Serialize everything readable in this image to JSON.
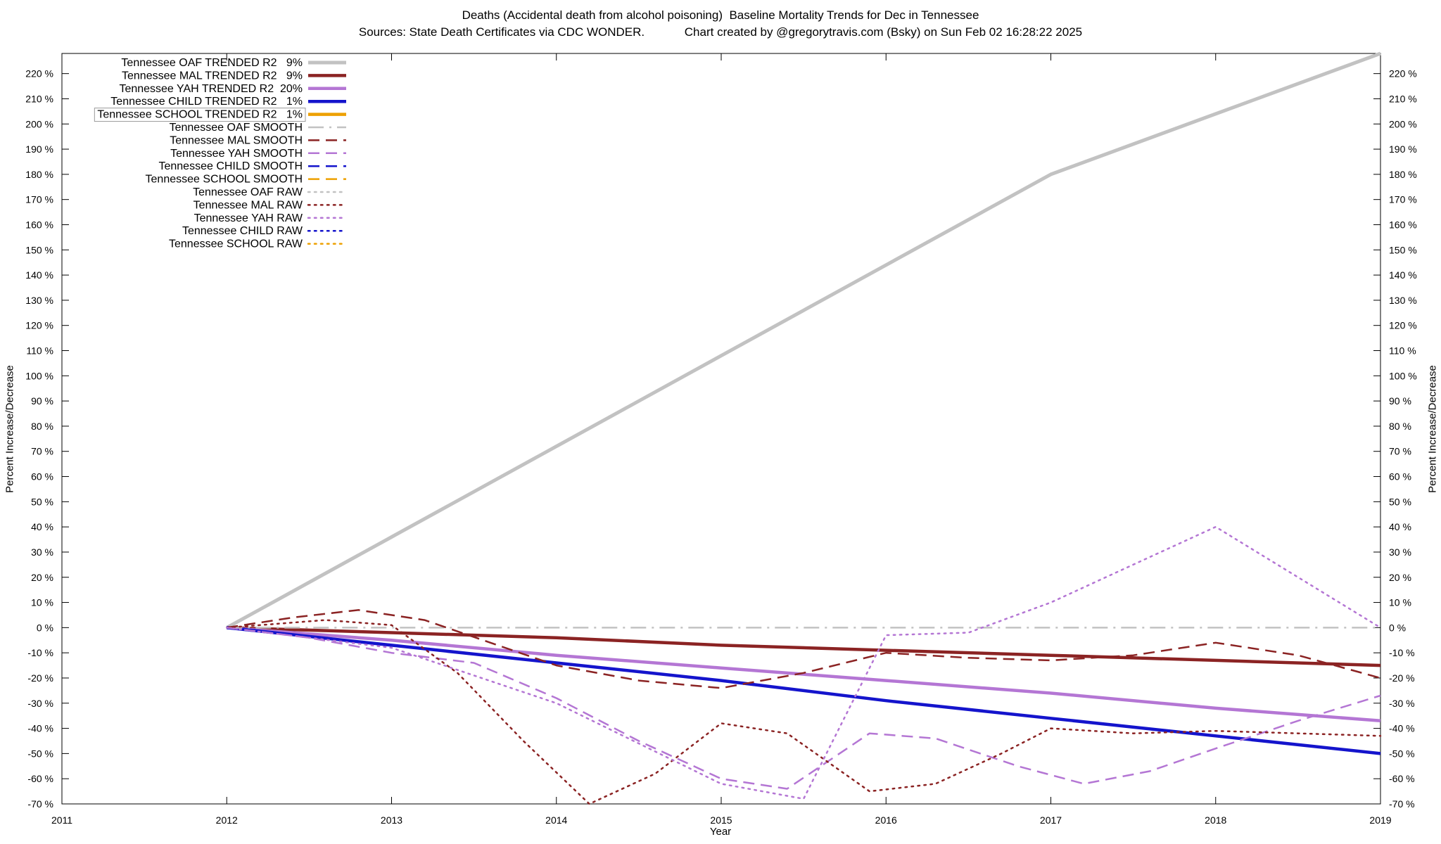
{
  "header": {
    "title_line1": "Deaths (Accidental death from alcohol poisoning)  Baseline Mortality Trends for Dec in Tennessee",
    "title_line2": "Sources: State Death Certificates via CDC WONDER.            Chart created by @gregorytravis.com (Bsky) on Sun Feb 02 16:28:22 2025"
  },
  "chart_data": {
    "type": "line",
    "title": "Deaths (Accidental death from alcohol poisoning)  Baseline Mortality Trends for Dec in Tennessee",
    "subtitle": "Sources: State Death Certificates via CDC WONDER.  Chart created by @gregorytravis.com (Bsky) on Sun Feb 02 16:28:22 2025",
    "xlabel": "Year",
    "ylabel": "Percent Increase/Decrease",
    "y2label": "Percent Increase/Decrease",
    "xlim": [
      2011,
      2019
    ],
    "ylim": [
      -70,
      228
    ],
    "grid": false,
    "legend_position": "top-left",
    "x_ticks": [
      2011,
      2012,
      2013,
      2014,
      2015,
      2016,
      2017,
      2018,
      2019
    ],
    "y_ticks": [
      -70,
      -60,
      -50,
      -40,
      -30,
      -20,
      -10,
      0,
      10,
      20,
      30,
      40,
      50,
      60,
      70,
      80,
      90,
      100,
      110,
      120,
      130,
      140,
      150,
      160,
      170,
      180,
      190,
      200,
      210,
      220
    ],
    "y_tick_suffix": " %",
    "colors": {
      "gray": "#c2c2c2",
      "dark_red": "#8b2323",
      "purple": "#b476d4",
      "blue": "#1414cc",
      "orange": "#eda000"
    },
    "series": [
      {
        "name": "Tennessee OAF TRENDED R2   9%",
        "key": "oaf-trended",
        "color": "#c2c2c2",
        "style": "solid",
        "width": 5,
        "boxed": false,
        "x": [
          2012,
          2013,
          2014,
          2015,
          2016,
          2017,
          2018,
          2019
        ],
        "y": [
          0,
          36,
          72,
          108,
          144,
          180,
          204,
          228
        ]
      },
      {
        "name": "Tennessee MAL TRENDED R2   9%",
        "key": "mal-trended",
        "color": "#8b2323",
        "style": "solid",
        "width": 4.5,
        "boxed": false,
        "x": [
          2012,
          2013,
          2014,
          2015,
          2016,
          2017,
          2018,
          2019
        ],
        "y": [
          0,
          -2,
          -4,
          -7,
          -9,
          -11,
          -13,
          -15
        ]
      },
      {
        "name": "Tennessee YAH TRENDED R2  20%",
        "key": "yah-trended",
        "color": "#b476d4",
        "style": "solid",
        "width": 4.5,
        "boxed": false,
        "x": [
          2012,
          2013,
          2014,
          2015,
          2016,
          2017,
          2018,
          2019
        ],
        "y": [
          0,
          -5,
          -11,
          -16,
          -21,
          -26,
          -32,
          -37
        ]
      },
      {
        "name": "Tennessee CHILD TRENDED R2   1%",
        "key": "child-trended",
        "color": "#1414cc",
        "style": "solid",
        "width": 4.5,
        "boxed": false,
        "x": [
          2012,
          2013,
          2014,
          2015,
          2016,
          2017,
          2018,
          2019
        ],
        "y": [
          0,
          -7,
          -14,
          -21,
          -29,
          -36,
          -43,
          -50
        ]
      },
      {
        "name": "Tennessee SCHOOL TRENDED R2   1%",
        "key": "school-trended",
        "color": "#eda000",
        "style": "solid",
        "width": 4.5,
        "boxed": true,
        "x": [],
        "y": []
      },
      {
        "name": "Tennessee OAF SMOOTH",
        "key": "oaf-smooth",
        "color": "#c2c2c2",
        "style": "dashdot",
        "width": 2.5,
        "boxed": false,
        "x": [
          2012,
          2019
        ],
        "y": [
          0,
          0
        ]
      },
      {
        "name": "Tennessee MAL SMOOTH",
        "key": "mal-smooth",
        "color": "#8b2323",
        "style": "dashed",
        "width": 2.5,
        "boxed": false,
        "x": [
          2012,
          2012.4,
          2012.8,
          2013.2,
          2013.6,
          2014,
          2014.5,
          2015,
          2015.5,
          2016,
          2016.5,
          2017,
          2017.5,
          2018,
          2018.5,
          2019
        ],
        "y": [
          0,
          4,
          7,
          3,
          -6,
          -15,
          -21,
          -24,
          -18,
          -10,
          -12,
          -13,
          -11,
          -6,
          -11,
          -20
        ]
      },
      {
        "name": "Tennessee YAH SMOOTH",
        "key": "yah-smooth",
        "color": "#b476d4",
        "style": "dashed",
        "width": 2.5,
        "boxed": false,
        "x": [
          2012,
          2012.5,
          2013,
          2013.5,
          2014,
          2014.5,
          2015,
          2015.4,
          2015.9,
          2016.3,
          2016.8,
          2017.2,
          2017.6,
          2018,
          2018.5,
          2019
        ],
        "y": [
          0,
          -4,
          -10,
          -14,
          -28,
          -45,
          -60,
          -64,
          -42,
          -44,
          -55,
          -62,
          -57,
          -48,
          -37,
          -27
        ]
      },
      {
        "name": "Tennessee CHILD SMOOTH",
        "key": "child-smooth",
        "color": "#1414cc",
        "style": "dashed",
        "width": 2.5,
        "boxed": false,
        "x": [],
        "y": []
      },
      {
        "name": "Tennessee SCHOOL SMOOTH",
        "key": "school-smooth",
        "color": "#eda000",
        "style": "dashed",
        "width": 2.5,
        "boxed": false,
        "x": [],
        "y": []
      },
      {
        "name": "Tennessee OAF RAW",
        "key": "oaf-raw",
        "color": "#c2c2c2",
        "style": "dotted",
        "width": 2.5,
        "boxed": false,
        "x": [],
        "y": []
      },
      {
        "name": "Tennessee MAL RAW",
        "key": "mal-raw",
        "color": "#8b2323",
        "style": "dotted",
        "width": 2.5,
        "boxed": false,
        "x": [
          2012,
          2012.6,
          2013,
          2013.4,
          2013.8,
          2014.2,
          2014.6,
          2015,
          2015.4,
          2015.9,
          2016.3,
          2016.7,
          2017,
          2017.5,
          2018,
          2018.5,
          2019
        ],
        "y": [
          0,
          3,
          1,
          -18,
          -45,
          -70,
          -58,
          -38,
          -42,
          -65,
          -62,
          -50,
          -40,
          -42,
          -41,
          -42,
          -43
        ]
      },
      {
        "name": "Tennessee YAH RAW",
        "key": "yah-raw",
        "color": "#b476d4",
        "style": "dotted",
        "width": 2.5,
        "boxed": false,
        "x": [
          2012,
          2013,
          2014,
          2015,
          2015.5,
          2016,
          2016.5,
          2017,
          2017.5,
          2018,
          2018.5,
          2019
        ],
        "y": [
          0,
          -8,
          -30,
          -62,
          -68,
          -3,
          -2,
          10,
          25,
          40,
          20,
          0
        ]
      },
      {
        "name": "Tennessee CHILD RAW",
        "key": "child-raw",
        "color": "#1414cc",
        "style": "dotted",
        "width": 2.5,
        "boxed": false,
        "x": [],
        "y": []
      },
      {
        "name": "Tennessee SCHOOL RAW",
        "key": "school-raw",
        "color": "#eda000",
        "style": "dotted",
        "width": 2.5,
        "boxed": false,
        "x": [],
        "y": []
      }
    ]
  }
}
